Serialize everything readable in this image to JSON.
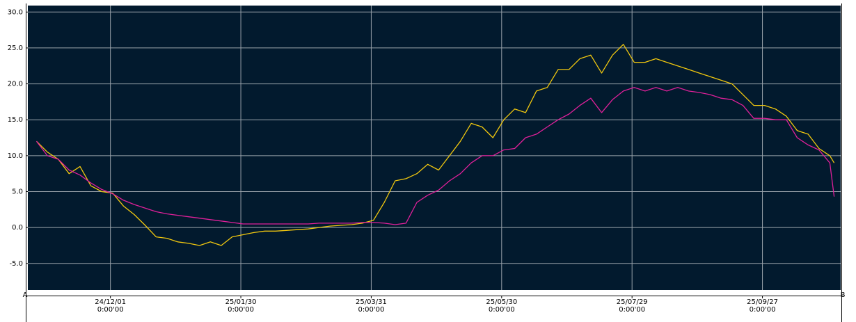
{
  "chart_data": {
    "type": "line",
    "x": [
      "24/10/28",
      "24/11/02",
      "24/11/07",
      "24/11/12",
      "24/11/17",
      "24/11/22",
      "24/11/27",
      "24/12/02",
      "24/12/07",
      "24/12/12",
      "24/12/17",
      "24/12/22",
      "24/12/27",
      "25/01/01",
      "25/01/06",
      "25/01/11",
      "25/01/16",
      "25/01/21",
      "25/01/26",
      "25/01/31",
      "25/02/05",
      "25/02/10",
      "25/02/15",
      "25/02/20",
      "25/02/25",
      "25/03/02",
      "25/03/07",
      "25/03/12",
      "25/03/17",
      "25/03/22",
      "25/03/27",
      "25/04/01",
      "25/04/06",
      "25/04/11",
      "25/04/16",
      "25/04/21",
      "25/04/26",
      "25/05/01",
      "25/05/06",
      "25/05/11",
      "25/05/16",
      "25/05/21",
      "25/05/26",
      "25/05/31",
      "25/06/05",
      "25/06/10",
      "25/06/15",
      "25/06/20",
      "25/06/25",
      "25/06/30",
      "25/07/05",
      "25/07/10",
      "25/07/15",
      "25/07/20",
      "25/07/25",
      "25/07/30",
      "25/08/04",
      "25/08/09",
      "25/08/14",
      "25/08/19",
      "25/08/24",
      "25/08/29",
      "25/09/03",
      "25/09/08",
      "25/09/13",
      "25/09/18",
      "25/09/23",
      "25/09/28",
      "25/10/03",
      "25/10/08",
      "25/10/13",
      "25/10/18",
      "25/10/23",
      "25/10/28",
      "25/10/30"
    ],
    "series": [
      {
        "color": "#f2c80f",
        "values": [
          12.0,
          10.5,
          9.5,
          7.5,
          8.5,
          5.8,
          5.0,
          4.8,
          3.0,
          1.8,
          0.3,
          -1.3,
          -1.5,
          -2.0,
          -2.2,
          -2.5,
          -2.0,
          -2.5,
          -1.3,
          -1.0,
          -0.7,
          -0.5,
          -0.5,
          -0.4,
          -0.3,
          -0.2,
          0.0,
          0.2,
          0.3,
          0.4,
          0.6,
          1.0,
          3.5,
          6.5,
          6.8,
          7.5,
          8.8,
          8.0,
          10.0,
          12.0,
          14.5,
          14.0,
          12.5,
          15.0,
          16.5,
          16.0,
          19.0,
          19.5,
          22.0,
          22.0,
          23.5,
          24.0,
          21.5,
          24.0,
          25.5,
          23.0,
          23.0,
          23.5,
          23.0,
          22.5,
          22.0,
          21.5,
          21.0,
          20.5,
          20.0,
          18.5,
          17.0,
          17.0,
          16.5,
          15.5,
          13.5,
          13.0,
          11.0,
          10.0,
          9.0
        ]
      },
      {
        "color": "#e0209a",
        "values": [
          12.0,
          10.0,
          9.5,
          8.0,
          7.3,
          6.2,
          5.3,
          4.7,
          3.8,
          3.2,
          2.7,
          2.2,
          1.9,
          1.7,
          1.5,
          1.3,
          1.1,
          0.9,
          0.7,
          0.5,
          0.5,
          0.5,
          0.5,
          0.5,
          0.5,
          0.5,
          0.6,
          0.6,
          0.6,
          0.6,
          0.7,
          0.7,
          0.6,
          0.4,
          0.6,
          3.5,
          4.5,
          5.2,
          6.5,
          7.5,
          9.0,
          10.0,
          10.0,
          10.8,
          11.0,
          12.5,
          13.0,
          14.0,
          15.0,
          15.8,
          17.0,
          18.0,
          16.0,
          17.8,
          19.0,
          19.5,
          19.0,
          19.5,
          19.0,
          19.5,
          19.0,
          18.8,
          18.5,
          18.0,
          17.8,
          17.0,
          15.2,
          15.2,
          15.0,
          15.0,
          12.5,
          11.5,
          10.8,
          9.0,
          4.3
        ]
      }
    ],
    "xlim": [
      "24/10/24",
      "25/11/02"
    ],
    "xticks": [
      "24/12/01",
      "25/01/30",
      "25/03/31",
      "25/05/30",
      "25/07/29",
      "25/09/27"
    ],
    "xtick_times": [
      "0:00'00",
      "0:00'00",
      "0:00'00",
      "0:00'00",
      "0:00'00",
      "0:00'00"
    ],
    "ylim": [
      -8.7,
      30.9
    ],
    "yticks": [
      {
        "value": -5,
        "label": "-5.0"
      },
      {
        "value": 0,
        "label": "0.0"
      },
      {
        "value": 5,
        "label": "5.0"
      },
      {
        "value": 10,
        "label": "10.0"
      },
      {
        "value": 15,
        "label": "15.0"
      },
      {
        "value": 20,
        "label": "20.0"
      },
      {
        "value": 25,
        "label": "25.0"
      },
      {
        "value": 30,
        "label": "30.0"
      }
    ],
    "axis_end_labels": [
      "A",
      "B"
    ],
    "grid": true
  }
}
